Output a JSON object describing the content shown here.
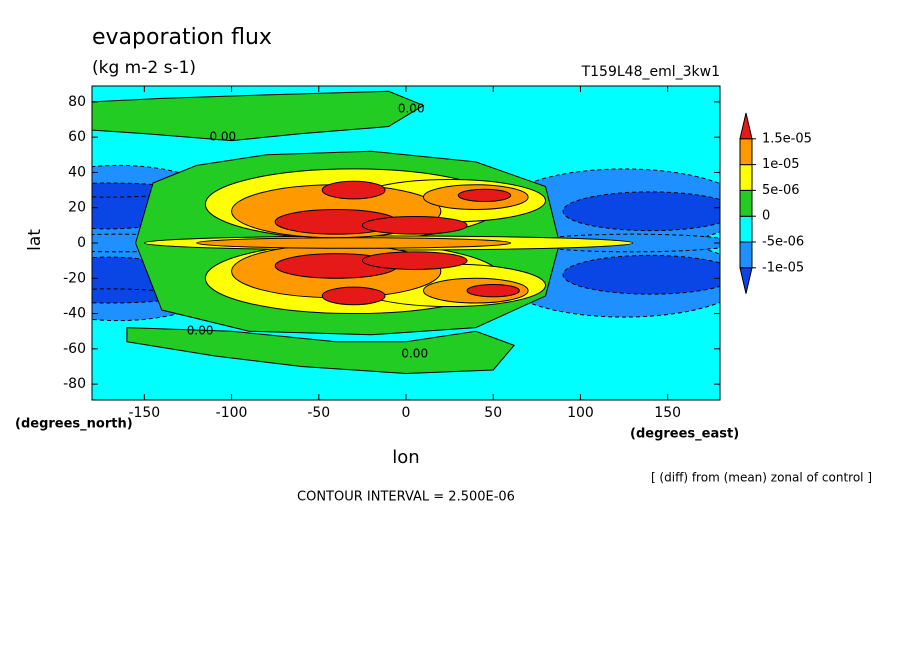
{
  "chart_data": {
    "type": "contour",
    "title": "evaporation flux",
    "subtitle": "(kg m-2 s-1)",
    "run_label": "T159L48_eml_3kw1",
    "xlabel": "lon",
    "ylabel": "lat",
    "x_units": "(degrees_east)",
    "y_units": "(degrees_north)",
    "note": "[ (diff) from (mean) zonal of control ]",
    "contour_interval": "CONTOUR INTERVAL = 2.500E-06",
    "xlim": [
      -180,
      180
    ],
    "xticks": [
      -150,
      -100,
      -50,
      0,
      50,
      100,
      150
    ],
    "ylim": [
      -89,
      89
    ],
    "yticks": [
      -80,
      -60,
      -40,
      -20,
      0,
      20,
      40,
      60,
      80
    ],
    "levels": [
      {
        "value": -1e-05,
        "label": "-1e-05"
      },
      {
        "value": -5e-06,
        "label": "-5e-06"
      },
      0,
      {
        "value": 5e-06,
        "label": "5e-06"
      },
      {
        "value": 1e-05,
        "label": "1e-05"
      },
      {
        "value": 1.5e-05,
        "label": "1.5e-05"
      }
    ],
    "colors": [
      "#0a46e6",
      "#1e90ff",
      "#00ffff",
      "#22cc22",
      "#ffff00",
      "#ff9900",
      "#e61919"
    ],
    "contour_labels": [
      {
        "value": 0,
        "label": "0.00"
      },
      {
        "value": 0,
        "label": "0.00"
      },
      {
        "value": 0,
        "label": "0.00"
      },
      {
        "value": 0,
        "label": "0.00"
      }
    ]
  }
}
